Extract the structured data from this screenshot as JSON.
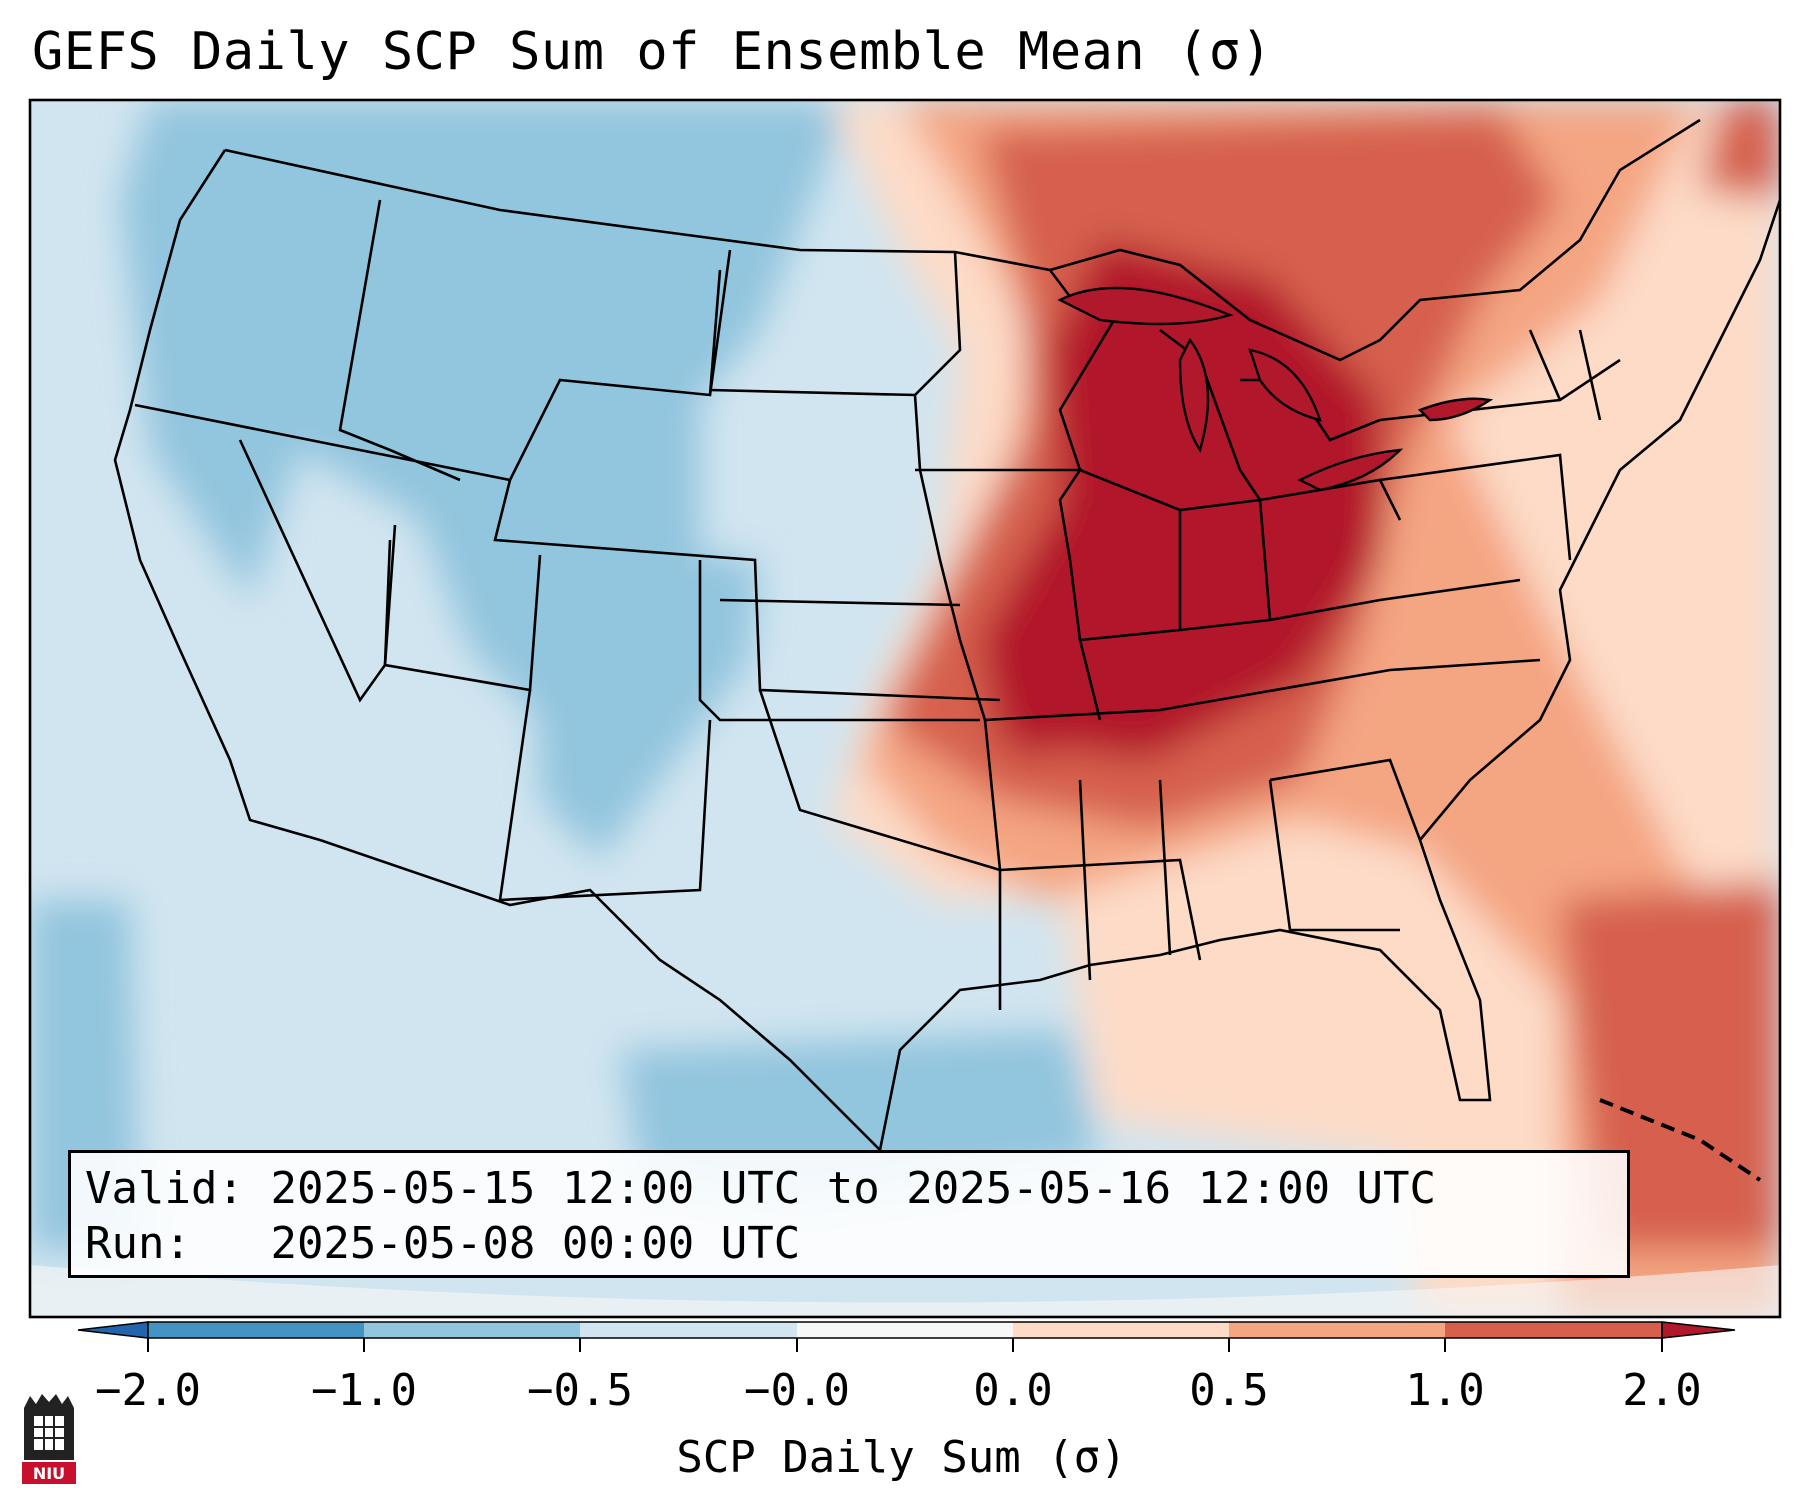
{
  "title": "GEFS Daily SCP Sum of Ensemble Mean (σ)",
  "info": {
    "valid_label": "Valid:",
    "valid_value": "2025-05-15 12:00 UTC to 2025-05-16 12:00 UTC",
    "run_label": "Run:",
    "run_value": "2025-05-08 00:00 UTC"
  },
  "colorbar": {
    "label": "SCP Daily Sum (σ)",
    "ticks": [
      "−2.0",
      "−1.0",
      "−0.5",
      "−0.0",
      "0.0",
      "0.5",
      "1.0",
      "2.0"
    ],
    "colors": [
      "#4393c3",
      "#92c5de",
      "#d1e5f0",
      "#f7f7f7",
      "#fddbc7",
      "#f4a582",
      "#d6604d",
      "#b2182b"
    ]
  },
  "logo": {
    "text": "NIU"
  }
}
